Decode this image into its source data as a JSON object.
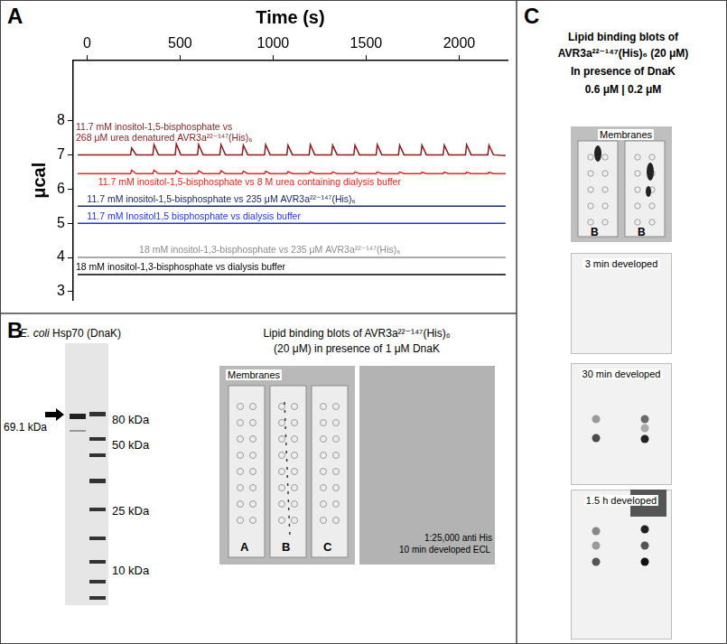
{
  "panel_labels": [
    "A",
    "B",
    "C"
  ],
  "chart_data": {
    "type": "line",
    "x_label": "Time (s)",
    "y_label": "μcal",
    "xlim": [
      -75,
      2260
    ],
    "xticks": [
      0,
      500,
      1000,
      1500,
      2000
    ],
    "ylim": [
      2.75,
      9.75
    ],
    "yticks": [
      3,
      4,
      5,
      6,
      7,
      8
    ],
    "grid": false,
    "series": [
      {
        "color": "#8b1c1c",
        "x": [
          -50,
          234,
          240,
          264,
          354,
          360,
          384,
          474,
          480,
          504,
          594,
          600,
          624,
          714,
          720,
          744,
          834,
          840,
          864,
          954,
          960,
          984,
          1074,
          1080,
          1104,
          1194,
          1200,
          1224,
          1314,
          1320,
          1344,
          1434,
          1440,
          1464,
          1554,
          1560,
          1584,
          1674,
          1680,
          1704,
          1794,
          1800,
          1824,
          1914,
          1920,
          1944,
          2034,
          2040,
          2064,
          2154,
          2160,
          2184,
          2250
        ],
        "values": [
          7.0,
          7.0,
          7.2,
          7.0,
          7.0,
          7.3,
          7.0,
          7.0,
          7.32,
          7.0,
          7.0,
          7.3,
          7.0,
          7.0,
          7.3,
          7.0,
          7.0,
          7.28,
          7.0,
          7.0,
          7.3,
          7.0,
          7.0,
          7.28,
          7.0,
          7.0,
          7.3,
          7.0,
          7.0,
          7.28,
          7.0,
          7.0,
          7.28,
          7.0,
          7.0,
          7.3,
          7.0,
          7.0,
          7.28,
          7.0,
          7.0,
          7.28,
          7.0,
          7.0,
          7.28,
          7.0,
          7.0,
          7.3,
          7.0,
          7.0,
          7.28,
          7.0,
          6.98
        ]
      },
      {
        "color": "#e8251f",
        "x": [
          -50,
          234,
          240,
          264,
          354,
          360,
          384,
          474,
          480,
          504,
          594,
          600,
          624,
          714,
          720,
          744,
          834,
          840,
          864,
          954,
          960,
          984,
          1074,
          1080,
          1104,
          1194,
          1200,
          1224,
          1314,
          1320,
          1344,
          1434,
          1440,
          1464,
          1554,
          1560,
          1584,
          1674,
          1680,
          1704,
          1794,
          1800,
          1824,
          1914,
          1920,
          1944,
          2034,
          2040,
          2064,
          2154,
          2160,
          2184,
          2250
        ],
        "values": [
          6.45,
          6.45,
          6.55,
          6.45,
          6.45,
          6.55,
          6.45,
          6.45,
          6.54,
          6.45,
          6.45,
          6.53,
          6.45,
          6.45,
          6.53,
          6.45,
          6.45,
          6.52,
          6.45,
          6.45,
          6.52,
          6.45,
          6.45,
          6.51,
          6.45,
          6.45,
          6.51,
          6.45,
          6.45,
          6.5,
          6.45,
          6.45,
          6.5,
          6.45,
          6.45,
          6.5,
          6.45,
          6.45,
          6.5,
          6.45,
          6.45,
          6.49,
          6.45,
          6.45,
          6.49,
          6.45,
          6.45,
          6.49,
          6.45,
          6.45,
          6.49,
          6.45,
          6.45
        ]
      },
      {
        "color": "#1b2a6b",
        "x": [
          -50,
          2250
        ],
        "values": [
          5.5,
          5.5
        ]
      },
      {
        "color": "#1f35e0",
        "x": [
          -50,
          2250
        ],
        "values": [
          5.0,
          5.0
        ]
      },
      {
        "color": "#8c8c8c",
        "x": [
          -50,
          2250
        ],
        "values": [
          4.0,
          4.0
        ]
      },
      {
        "color": "#000000",
        "x": [
          -50,
          2250
        ],
        "values": [
          3.5,
          3.5
        ]
      }
    ],
    "annotations": [
      {
        "text": "11.7 mM inositol-1,5-bisphosphate vs",
        "x": -60,
        "y": 7.72,
        "color": "#8b1c1c"
      },
      {
        "text": "268 μM urea denatured AVR3a²²⁻¹⁴⁷(His)₆",
        "x": -60,
        "y": 7.4,
        "color": "#8b1c1c"
      },
      {
        "text": "11.7 mM inositol-1,5-bisphosphate vs 8 M urea containing dialysis buffer",
        "x": 60,
        "y": 6.12,
        "color": "#e8251f"
      },
      {
        "text": "11.7 mM inositol-1,5-bisphosphate vs 235 μM AVR3a²²⁻¹⁴⁷(His)₆",
        "x": 0,
        "y": 5.62,
        "color": "#1b2a6b"
      },
      {
        "text": "11.7 mM Inositol1,5 bisphosphate vs dialysis buffer",
        "x": 0,
        "y": 5.12,
        "color": "#1f35e0"
      },
      {
        "text": "18 mM inositol-1,3-bisphosphate vs 235 μM AVR3a²²⁻¹⁴⁷(His)₆",
        "x": 280,
        "y": 4.12,
        "color": "#8c8c8c"
      },
      {
        "text": "18 mM inositol-1,3-bisphosphate vs dialysis buffer",
        "x": -60,
        "y": 3.62,
        "color": "#000000"
      }
    ]
  },
  "panel_b": {
    "gel_title": "E. coli Hsp70 (DnaK)",
    "band_label": "69.1 kDa",
    "marker_labels": [
      "80 kDa",
      "50 kDa",
      "25 kDa",
      "10 kDa"
    ],
    "blot_title": [
      "Lipid binding blots of AVR3a²²⁻¹⁴⁷(His)₆",
      "(20 μM) in presence of 1 μM DnaK"
    ],
    "membranes_label": "Membranes",
    "strip_labels": [
      "A",
      "B",
      "C"
    ],
    "ecl_label": [
      "1:25,000 anti His",
      "10 min developed ECL"
    ]
  },
  "panel_c": {
    "title": [
      "Lipid binding blots of",
      "AVR3a²²⁻¹⁴⁷(His)₆ (20 μM)",
      "In presence of DnaK",
      "0.6 μM | 0.2 μM"
    ],
    "membranes_label": "Membranes",
    "strip_labels": [
      "B",
      "B"
    ],
    "development_labels": [
      "3 min developed",
      "30 min developed",
      "1.5 h developed"
    ]
  }
}
